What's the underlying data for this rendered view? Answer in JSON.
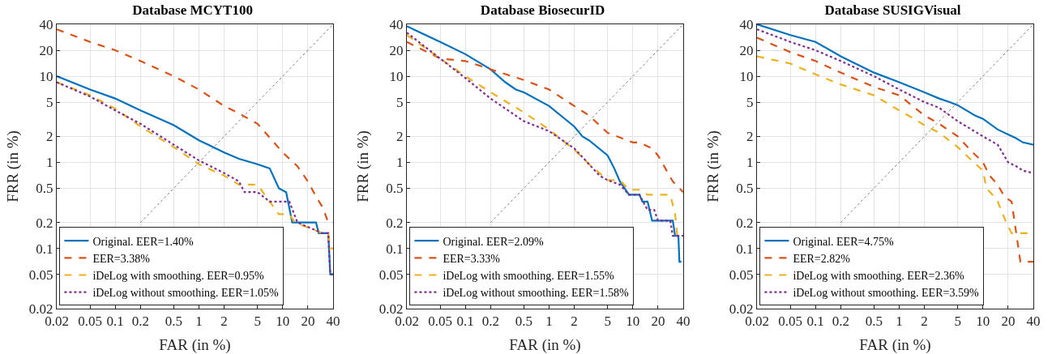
{
  "chart_data": [
    {
      "type": "line",
      "title": "Database MCYT100",
      "xlabel": "FAR (in %)",
      "ylabel": "FRR (in %)",
      "log": "xy",
      "grid": true,
      "legend": "bottom left",
      "xlim": [
        0.02,
        40
      ],
      "ylim": [
        0.02,
        40
      ],
      "xticks": [
        0.02,
        0.05,
        0.1,
        0.2,
        0.5,
        1,
        2,
        5,
        10,
        20,
        40
      ],
      "yticks": [
        0.02,
        0.05,
        0.1,
        0.2,
        0.5,
        1,
        2,
        5,
        10,
        20,
        40
      ],
      "series": [
        {
          "name": "Original. EER=1.40%",
          "color": "#0072bd",
          "line_style": "solid",
          "x": [
            0.02,
            0.05,
            0.1,
            0.2,
            0.5,
            1,
            2,
            3,
            5,
            7,
            9,
            11,
            13,
            25,
            27,
            35,
            37,
            40
          ],
          "values": [
            10,
            7,
            5.5,
            4,
            2.7,
            1.8,
            1.3,
            1.1,
            0.95,
            0.85,
            0.5,
            0.45,
            0.2,
            0.2,
            0.15,
            0.15,
            0.05,
            0.05
          ]
        },
        {
          "name": "EER=3.38%",
          "color": "#d95319",
          "line_style": "dashed",
          "x": [
            0.02,
            0.05,
            0.1,
            0.2,
            0.5,
            1,
            2,
            3,
            5,
            10,
            15,
            20,
            25,
            30,
            35,
            40
          ],
          "values": [
            35,
            25,
            20,
            15,
            10,
            7,
            4.5,
            3.7,
            2.8,
            1.3,
            0.9,
            0.6,
            0.4,
            0.3,
            0.2,
            0.2
          ]
        },
        {
          "name": "iDeLog with smoothing. EER=0.95%",
          "color": "#edb120",
          "line_style": "dashed",
          "x": [
            0.02,
            0.05,
            0.1,
            0.2,
            0.5,
            1,
            2,
            3,
            5,
            7,
            9,
            12,
            14,
            30,
            35,
            37,
            40
          ],
          "values": [
            8.5,
            6,
            4.2,
            2.6,
            1.5,
            0.95,
            0.7,
            0.55,
            0.55,
            0.35,
            0.25,
            0.25,
            0.2,
            0.15,
            0.15,
            0.1,
            0.1
          ]
        },
        {
          "name": "iDeLog without smoothing. EER=1.05%",
          "color": "#7e2f8e",
          "line_style": "dotted",
          "x": [
            0.02,
            0.05,
            0.1,
            0.2,
            0.5,
            1,
            2,
            3,
            3.5,
            5,
            7,
            12,
            15,
            30,
            35,
            37,
            40
          ],
          "values": [
            8.5,
            5.8,
            4,
            2.8,
            1.6,
            1.05,
            0.75,
            0.6,
            0.45,
            0.45,
            0.35,
            0.35,
            0.2,
            0.15,
            0.15,
            0.05,
            0.05
          ]
        },
        {
          "color": "#808080",
          "line_style": "dotted",
          "x": [
            0.2,
            40
          ],
          "values": [
            0.2,
            40
          ]
        }
      ]
    },
    {
      "type": "line",
      "title": "Database BiosecurID",
      "xlabel": "FAR (in %)",
      "ylabel": "FRR (in %)",
      "log": "xy",
      "grid": true,
      "legend": "bottom left",
      "xlim": [
        0.02,
        40
      ],
      "ylim": [
        0.02,
        40
      ],
      "xticks": [
        0.02,
        0.05,
        0.1,
        0.2,
        0.5,
        1,
        2,
        5,
        10,
        20,
        40
      ],
      "yticks": [
        0.02,
        0.05,
        0.1,
        0.2,
        0.5,
        1,
        2,
        5,
        10,
        20,
        40
      ],
      "series": [
        {
          "name": "Original. EER=2.09%",
          "color": "#0072bd",
          "line_style": "solid",
          "x": [
            0.02,
            0.05,
            0.1,
            0.2,
            0.3,
            0.4,
            0.5,
            1,
            2,
            2.5,
            3,
            5,
            6,
            7,
            9,
            12,
            13,
            15,
            17,
            30,
            32,
            35,
            36,
            38
          ],
          "values": [
            38,
            25,
            18,
            12,
            8.5,
            7,
            6.5,
            4.5,
            2.6,
            2,
            1.8,
            1.2,
            0.85,
            0.6,
            0.42,
            0.42,
            0.35,
            0.35,
            0.21,
            0.21,
            0.14,
            0.14,
            0.07,
            0.07
          ]
        },
        {
          "name": "EER=3.33%",
          "color": "#d95319",
          "line_style": "dashed",
          "x": [
            0.02,
            0.05,
            0.1,
            0.2,
            0.5,
            1,
            2,
            3,
            5,
            10,
            12,
            17,
            20,
            30,
            40
          ],
          "values": [
            25,
            16,
            15,
            12,
            9,
            7,
            4.5,
            3.5,
            2.2,
            1.7,
            1.7,
            1.45,
            1.2,
            0.6,
            0.45
          ]
        },
        {
          "name": "iDeLog with smoothing. EER=1.55%",
          "color": "#edb120",
          "line_style": "dashed",
          "x": [
            0.02,
            0.05,
            0.1,
            0.2,
            0.5,
            1,
            2,
            3,
            4,
            5,
            7,
            9,
            12,
            15,
            28,
            32,
            34,
            40
          ],
          "values": [
            30,
            16,
            10,
            6.5,
            3.8,
            2.4,
            1.4,
            0.95,
            0.75,
            0.62,
            0.62,
            0.48,
            0.48,
            0.42,
            0.42,
            0.25,
            0.14,
            0.14
          ]
        },
        {
          "name": "iDeLog without smoothing. EER=1.58%",
          "color": "#7e2f8e",
          "line_style": "dotted",
          "x": [
            0.02,
            0.05,
            0.1,
            0.2,
            0.5,
            1,
            2,
            3,
            4,
            5,
            7,
            9,
            12,
            15,
            18,
            20,
            28,
            30,
            40
          ],
          "values": [
            32,
            16,
            9.5,
            5.5,
            3,
            2.3,
            1.45,
            0.95,
            0.7,
            0.62,
            0.55,
            0.42,
            0.42,
            0.28,
            0.28,
            0.21,
            0.21,
            0.14,
            0.14
          ]
        },
        {
          "color": "#808080",
          "line_style": "dotted",
          "x": [
            0.2,
            40
          ],
          "values": [
            0.2,
            40
          ]
        }
      ]
    },
    {
      "type": "line",
      "title": "Database SUSIGVisual",
      "xlabel": "FAR (in %)",
      "ylabel": "FRR (in %)",
      "log": "xy",
      "grid": true,
      "legend": "bottom left",
      "xlim": [
        0.02,
        40
      ],
      "ylim": [
        0.02,
        40
      ],
      "xticks": [
        0.02,
        0.05,
        0.1,
        0.2,
        0.5,
        1,
        2,
        5,
        10,
        20,
        40
      ],
      "yticks": [
        0.02,
        0.05,
        0.1,
        0.2,
        0.5,
        1,
        2,
        5,
        10,
        20,
        40
      ],
      "series": [
        {
          "name": "Original. EER=4.75%",
          "color": "#0072bd",
          "line_style": "solid",
          "x": [
            0.02,
            0.05,
            0.1,
            0.2,
            0.3,
            0.5,
            1,
            2,
            3,
            4,
            5,
            8,
            10,
            15,
            20,
            25,
            30,
            40
          ],
          "values": [
            40,
            30,
            25,
            17,
            14,
            11,
            8.5,
            6.5,
            5.5,
            5,
            4.6,
            3.5,
            3.2,
            2.4,
            2.1,
            1.9,
            1.7,
            1.6
          ]
        },
        {
          "name": "EER=2.82%",
          "color": "#d95319",
          "line_style": "dashed",
          "x": [
            0.02,
            0.05,
            0.1,
            0.2,
            0.5,
            1,
            2,
            3,
            5,
            7,
            10,
            12,
            15,
            18,
            22,
            25,
            28,
            40
          ],
          "values": [
            28,
            19,
            15,
            11,
            7.5,
            6,
            3.5,
            2.8,
            2,
            1.4,
            1,
            0.7,
            0.55,
            0.4,
            0.35,
            0.15,
            0.07,
            0.07
          ]
        },
        {
          "name": "iDeLog with smoothing. EER=2.36%",
          "color": "#edb120",
          "line_style": "dashed",
          "x": [
            0.02,
            0.05,
            0.1,
            0.2,
            0.5,
            1,
            1.5,
            2,
            3,
            5,
            7,
            10,
            11,
            13,
            15,
            19,
            22,
            40
          ],
          "values": [
            17,
            14,
            10.5,
            8,
            6,
            4,
            3.2,
            2.7,
            2.2,
            1.5,
            1.1,
            0.8,
            0.5,
            0.42,
            0.35,
            0.2,
            0.15,
            0.15
          ]
        },
        {
          "name": "iDeLog without smoothing. EER=3.59%",
          "color": "#7e2f8e",
          "line_style": "dotted",
          "x": [
            0.02,
            0.05,
            0.1,
            0.2,
            0.5,
            1,
            2,
            3,
            5,
            10,
            15,
            20,
            25,
            30,
            40
          ],
          "values": [
            35,
            25,
            20,
            15,
            10,
            7,
            5,
            4.3,
            3,
            2,
            1.6,
            1,
            0.9,
            0.8,
            0.75
          ]
        },
        {
          "color": "#808080",
          "line_style": "dotted",
          "x": [
            0.2,
            40
          ],
          "values": [
            0.2,
            40
          ]
        }
      ]
    }
  ]
}
